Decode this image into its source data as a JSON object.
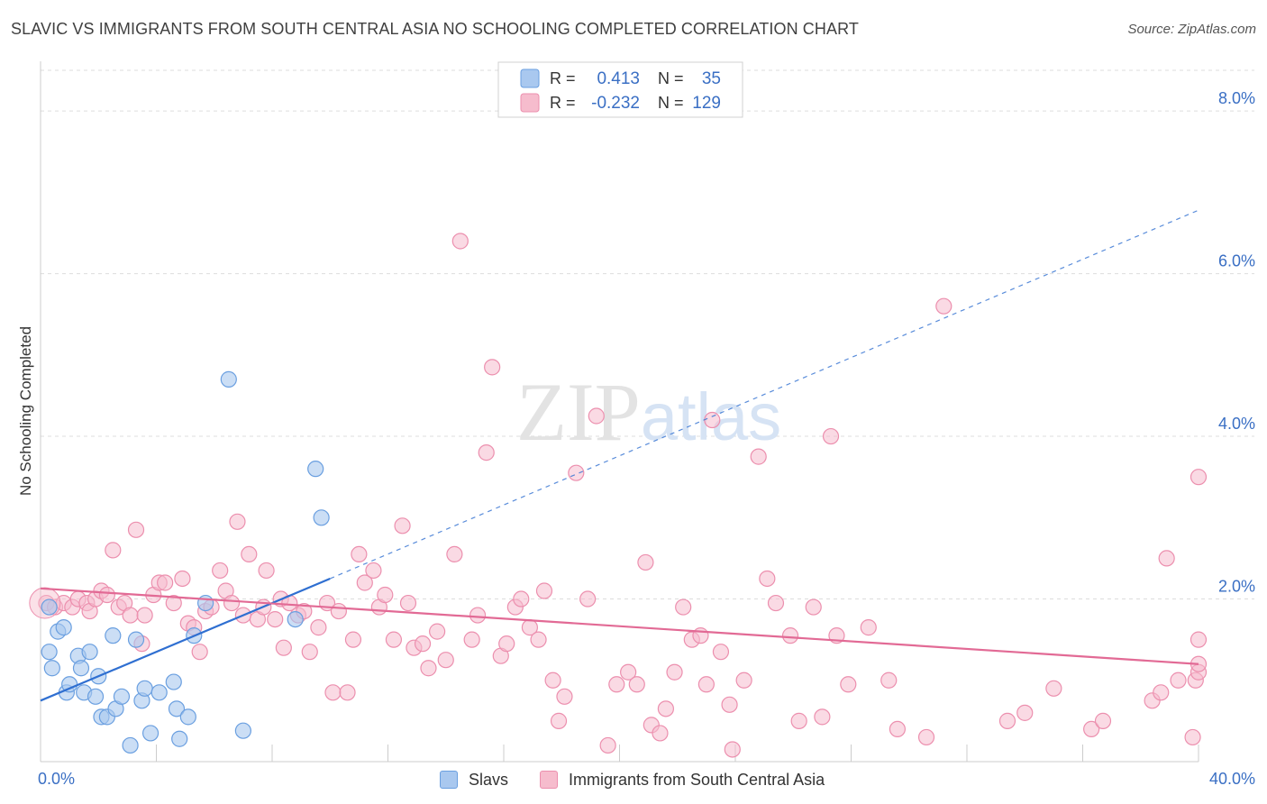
{
  "title": "SLAVIC VS IMMIGRANTS FROM SOUTH CENTRAL ASIA NO SCHOOLING COMPLETED CORRELATION CHART",
  "source": "Source: ZipAtlas.com",
  "watermark": {
    "part1": "ZIP",
    "part2": "atlas"
  },
  "colors": {
    "slavs_fill": "#a9c8ef",
    "slavs_stroke": "#6a9fe0",
    "slavs_line": "#2f6fd1",
    "imm_fill": "#f6bccd",
    "imm_stroke": "#ec8fae",
    "imm_line": "#e26a95",
    "grid": "#dddddd",
    "axis_label": "#3a6fc4"
  },
  "legend_top": {
    "rows": [
      {
        "r_label": "R =",
        "r_value": "0.413",
        "n_label": "N =",
        "n_value": "35"
      },
      {
        "r_label": "R =",
        "r_value": "-0.232",
        "n_label": "N =",
        "n_value": "129"
      }
    ]
  },
  "legend_bottom": {
    "slavs": "Slavs",
    "immigrants": "Immigrants from South Central Asia"
  },
  "chart_data": {
    "type": "scatter",
    "ylabel": "No Schooling Completed",
    "x_range": [
      0,
      40
    ],
    "y_range": [
      0,
      8.5
    ],
    "x_tick_labels": [
      "0.0%",
      "40.0%"
    ],
    "y_ticks": [
      {
        "value": 2,
        "label": "2.0%"
      },
      {
        "value": 4,
        "label": "4.0%"
      },
      {
        "value": 6,
        "label": "6.0%"
      },
      {
        "value": 8,
        "label": "8.0%"
      }
    ],
    "grid": true,
    "series": [
      {
        "name": "Slavs",
        "r": 0.413,
        "n": 35,
        "trend": {
          "x0": 0,
          "y0": 0.75,
          "x1": 10,
          "y1": 2.25,
          "dash_to_x": 40,
          "dash_to_y": 6.78
        },
        "points": [
          [
            0.3,
            1.9
          ],
          [
            0.3,
            1.35
          ],
          [
            0.4,
            1.15
          ],
          [
            0.6,
            1.6
          ],
          [
            0.8,
            1.65
          ],
          [
            0.9,
            0.85
          ],
          [
            1.0,
            0.95
          ],
          [
            1.3,
            1.3
          ],
          [
            1.4,
            1.15
          ],
          [
            1.5,
            0.85
          ],
          [
            1.7,
            1.35
          ],
          [
            1.9,
            0.8
          ],
          [
            2.0,
            1.05
          ],
          [
            2.1,
            0.55
          ],
          [
            2.3,
            0.55
          ],
          [
            2.5,
            1.55
          ],
          [
            2.6,
            0.65
          ],
          [
            2.8,
            0.8
          ],
          [
            3.1,
            0.2
          ],
          [
            3.3,
            1.5
          ],
          [
            3.5,
            0.75
          ],
          [
            3.6,
            0.9
          ],
          [
            3.8,
            0.35
          ],
          [
            4.1,
            0.85
          ],
          [
            4.6,
            0.98
          ],
          [
            4.7,
            0.65
          ],
          [
            4.8,
            0.28
          ],
          [
            5.1,
            0.55
          ],
          [
            5.3,
            1.55
          ],
          [
            5.7,
            1.95
          ],
          [
            6.5,
            4.7
          ],
          [
            7.0,
            0.38
          ],
          [
            8.8,
            1.75
          ],
          [
            9.5,
            3.6
          ],
          [
            9.7,
            3.0
          ]
        ]
      },
      {
        "name": "Immigrants from South Central Asia",
        "r": -0.232,
        "n": 129,
        "trend": {
          "x0": 0,
          "y0": 2.13,
          "x1": 40,
          "y1": 1.2
        },
        "points": [
          [
            0.2,
            1.95
          ],
          [
            0.5,
            1.9
          ],
          [
            0.8,
            1.95
          ],
          [
            1.1,
            1.9
          ],
          [
            1.3,
            2.0
          ],
          [
            1.6,
            1.95
          ],
          [
            1.7,
            1.85
          ],
          [
            1.9,
            2.0
          ],
          [
            2.1,
            2.1
          ],
          [
            2.3,
            2.05
          ],
          [
            2.5,
            2.6
          ],
          [
            2.7,
            1.9
          ],
          [
            2.9,
            1.95
          ],
          [
            3.1,
            1.8
          ],
          [
            3.3,
            2.85
          ],
          [
            3.5,
            1.45
          ],
          [
            3.6,
            1.8
          ],
          [
            3.9,
            2.05
          ],
          [
            4.1,
            2.2
          ],
          [
            4.3,
            2.2
          ],
          [
            4.6,
            1.95
          ],
          [
            4.9,
            2.25
          ],
          [
            5.1,
            1.7
          ],
          [
            5.3,
            1.65
          ],
          [
            5.5,
            1.35
          ],
          [
            5.7,
            1.85
          ],
          [
            5.9,
            1.9
          ],
          [
            6.2,
            2.35
          ],
          [
            6.4,
            2.1
          ],
          [
            6.6,
            1.95
          ],
          [
            6.8,
            2.95
          ],
          [
            7.0,
            1.8
          ],
          [
            7.2,
            2.55
          ],
          [
            7.5,
            1.75
          ],
          [
            7.7,
            1.9
          ],
          [
            7.8,
            2.35
          ],
          [
            8.1,
            1.75
          ],
          [
            8.3,
            2.0
          ],
          [
            8.4,
            1.4
          ],
          [
            8.6,
            1.95
          ],
          [
            8.9,
            1.8
          ],
          [
            9.1,
            1.85
          ],
          [
            9.3,
            1.35
          ],
          [
            9.6,
            1.65
          ],
          [
            9.9,
            1.95
          ],
          [
            10.1,
            0.85
          ],
          [
            10.3,
            1.85
          ],
          [
            10.6,
            0.85
          ],
          [
            10.8,
            1.5
          ],
          [
            11.0,
            2.55
          ],
          [
            11.2,
            2.2
          ],
          [
            11.5,
            2.35
          ],
          [
            11.7,
            1.9
          ],
          [
            11.9,
            2.05
          ],
          [
            12.2,
            1.5
          ],
          [
            12.5,
            2.9
          ],
          [
            12.7,
            1.95
          ],
          [
            12.9,
            1.4
          ],
          [
            13.2,
            1.45
          ],
          [
            13.4,
            1.15
          ],
          [
            13.7,
            1.6
          ],
          [
            14.0,
            1.25
          ],
          [
            14.3,
            2.55
          ],
          [
            14.5,
            6.4
          ],
          [
            14.9,
            1.5
          ],
          [
            15.1,
            1.8
          ],
          [
            15.4,
            3.8
          ],
          [
            15.6,
            4.85
          ],
          [
            15.9,
            1.3
          ],
          [
            16.1,
            1.45
          ],
          [
            16.4,
            1.9
          ],
          [
            16.6,
            2.0
          ],
          [
            16.9,
            1.65
          ],
          [
            17.2,
            1.5
          ],
          [
            17.4,
            2.1
          ],
          [
            17.7,
            1.0
          ],
          [
            17.9,
            0.5
          ],
          [
            18.1,
            0.8
          ],
          [
            18.5,
            3.55
          ],
          [
            18.9,
            2.0
          ],
          [
            19.2,
            4.25
          ],
          [
            19.6,
            0.2
          ],
          [
            19.9,
            0.95
          ],
          [
            20.3,
            1.1
          ],
          [
            20.6,
            0.95
          ],
          [
            20.9,
            2.45
          ],
          [
            21.1,
            0.45
          ],
          [
            21.4,
            0.35
          ],
          [
            21.6,
            0.65
          ],
          [
            21.9,
            1.1
          ],
          [
            22.2,
            1.9
          ],
          [
            22.5,
            1.5
          ],
          [
            22.8,
            1.55
          ],
          [
            23.0,
            0.95
          ],
          [
            23.2,
            4.2
          ],
          [
            23.5,
            1.35
          ],
          [
            23.8,
            0.7
          ],
          [
            23.9,
            0.15
          ],
          [
            24.3,
            1.0
          ],
          [
            24.8,
            3.75
          ],
          [
            25.1,
            2.25
          ],
          [
            25.4,
            1.95
          ],
          [
            25.9,
            1.55
          ],
          [
            26.2,
            0.5
          ],
          [
            26.7,
            1.9
          ],
          [
            27.0,
            0.55
          ],
          [
            27.3,
            4.0
          ],
          [
            27.5,
            1.55
          ],
          [
            27.9,
            0.95
          ],
          [
            28.6,
            1.65
          ],
          [
            29.3,
            1.0
          ],
          [
            29.6,
            0.4
          ],
          [
            30.6,
            0.3
          ],
          [
            31.2,
            5.6
          ],
          [
            33.4,
            0.5
          ],
          [
            34.0,
            0.6
          ],
          [
            35.0,
            0.9
          ],
          [
            36.3,
            0.4
          ],
          [
            36.7,
            0.5
          ],
          [
            38.4,
            0.75
          ],
          [
            38.7,
            0.85
          ],
          [
            38.9,
            2.5
          ],
          [
            39.3,
            1.0
          ],
          [
            39.8,
            0.3
          ],
          [
            39.9,
            1.0
          ],
          [
            40.0,
            1.5
          ],
          [
            41.3,
            1.1
          ],
          [
            41.8,
            3.5
          ],
          [
            41.0,
            1.2
          ]
        ]
      }
    ]
  }
}
